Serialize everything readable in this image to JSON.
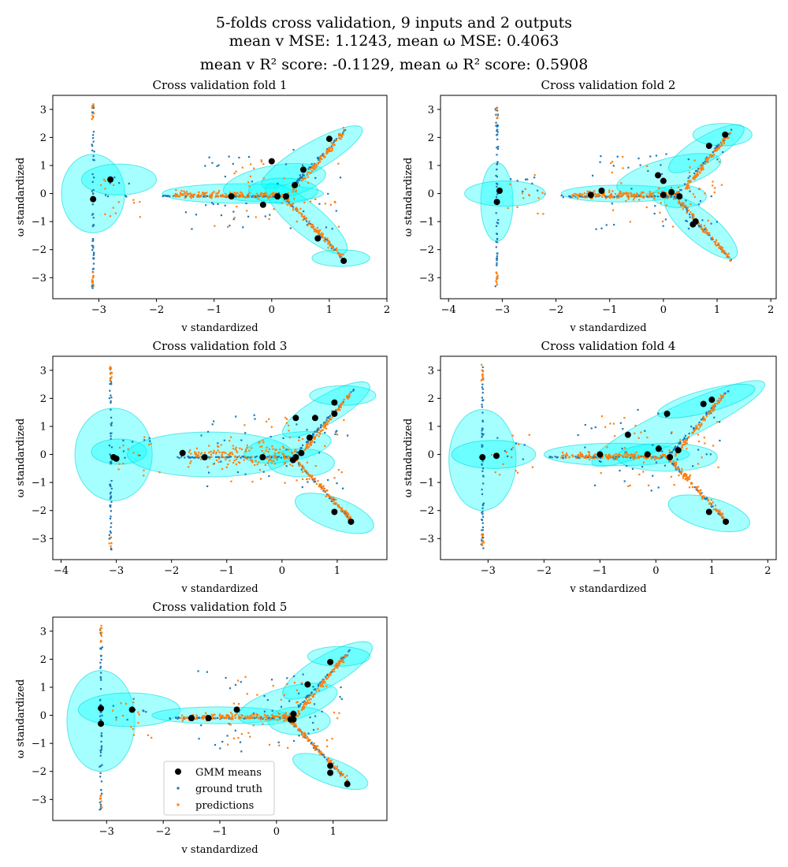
{
  "figure": {
    "title_line1": "5-folds cross validation, 9 inputs and 2 outputs",
    "title_line2": "mean v MSE: 1.1243, mean ω MSE: 0.4063",
    "title_line3": "mean v R² score: -0.1129, mean ω R² score: 0.5908"
  },
  "colors": {
    "gmm_means": "#000000",
    "ground_truth": "#1f77b4",
    "predictions": "#ff7f0e",
    "ellipse_fill": "#00ffff",
    "ellipse_stroke": "#00d8d8"
  },
  "legend": {
    "placement": "lower-center",
    "entries": [
      "GMM means",
      "ground truth",
      "predictions"
    ]
  },
  "chart_data": [
    {
      "type": "scatter",
      "title": "Cross validation fold 1",
      "xlabel": "v standardized",
      "ylabel": "ω standardized",
      "xlim": [
        -3.8,
        2.0
      ],
      "ylim": [
        -3.75,
        3.5
      ],
      "xticks": [
        -3,
        -2,
        -1,
        0,
        1,
        2
      ],
      "yticks": [
        -3,
        -2,
        -1,
        0,
        1,
        2,
        3
      ],
      "gmm_means": [
        [
          -3.1,
          -0.2
        ],
        [
          -2.8,
          0.5
        ],
        [
          -0.7,
          -0.1
        ],
        [
          -0.15,
          -0.4
        ],
        [
          0.0,
          1.15
        ],
        [
          0.1,
          -0.1
        ],
        [
          0.25,
          -0.1
        ],
        [
          0.4,
          0.3
        ],
        [
          0.55,
          0.85
        ],
        [
          0.8,
          -1.6
        ],
        [
          1.0,
          1.95
        ],
        [
          1.25,
          -2.4
        ]
      ],
      "ellipses": [
        {
          "cx": -3.1,
          "cy": 0.0,
          "rx": 0.55,
          "ry": 1.4,
          "angle": 0
        },
        {
          "cx": -2.65,
          "cy": 0.5,
          "rx": 0.65,
          "ry": 0.55,
          "angle": 0
        },
        {
          "cx": -0.5,
          "cy": 0.0,
          "rx": 1.4,
          "ry": 0.35,
          "angle": 0
        },
        {
          "cx": 0.05,
          "cy": 0.4,
          "rx": 0.9,
          "ry": 0.6,
          "angle": 10
        },
        {
          "cx": 0.7,
          "cy": 1.3,
          "rx": 1.0,
          "ry": 0.5,
          "angle": 30
        },
        {
          "cx": 0.6,
          "cy": -0.9,
          "rx": 0.9,
          "ry": 0.55,
          "angle": -40
        },
        {
          "cx": 1.2,
          "cy": -2.3,
          "rx": 0.5,
          "ry": 0.3,
          "angle": 0
        },
        {
          "cx": 0.2,
          "cy": 0.1,
          "rx": 0.6,
          "ry": 0.45,
          "angle": 0
        }
      ]
    },
    {
      "type": "scatter",
      "title": "Cross validation fold 2",
      "xlabel": "v standardized",
      "ylabel": "ω standardized",
      "xlim": [
        -4.15,
        2.1
      ],
      "ylim": [
        -3.75,
        3.5
      ],
      "xticks": [
        -4,
        -3,
        -2,
        -1,
        0,
        1,
        2
      ],
      "yticks": [
        -3,
        -2,
        -1,
        0,
        1,
        2,
        3
      ],
      "gmm_means": [
        [
          -3.1,
          -0.3
        ],
        [
          -3.05,
          0.1
        ],
        [
          -1.35,
          -0.05
        ],
        [
          -1.15,
          0.1
        ],
        [
          -0.1,
          0.65
        ],
        [
          0.0,
          0.45
        ],
        [
          0.0,
          -0.05
        ],
        [
          0.15,
          0.05
        ],
        [
          0.3,
          -0.1
        ],
        [
          0.55,
          -1.1
        ],
        [
          0.6,
          -1.0
        ],
        [
          0.85,
          1.7
        ],
        [
          1.15,
          2.1
        ]
      ],
      "ellipses": [
        {
          "cx": -3.1,
          "cy": -0.3,
          "rx": 0.3,
          "ry": 1.4,
          "angle": 0
        },
        {
          "cx": -2.95,
          "cy": 0.0,
          "rx": 0.75,
          "ry": 0.45,
          "angle": 0
        },
        {
          "cx": -0.8,
          "cy": 0.0,
          "rx": 1.1,
          "ry": 0.3,
          "angle": 0
        },
        {
          "cx": 0.1,
          "cy": 0.7,
          "rx": 1.0,
          "ry": 0.55,
          "angle": 15
        },
        {
          "cx": 0.8,
          "cy": 1.6,
          "rx": 0.8,
          "ry": 0.45,
          "angle": 30
        },
        {
          "cx": 0.7,
          "cy": -1.2,
          "rx": 0.85,
          "ry": 0.55,
          "angle": -40
        },
        {
          "cx": 1.1,
          "cy": 2.1,
          "rx": 0.55,
          "ry": 0.4,
          "angle": 0
        },
        {
          "cx": 0.3,
          "cy": -0.1,
          "rx": 0.5,
          "ry": 0.4,
          "angle": 0
        }
      ]
    },
    {
      "type": "scatter",
      "title": "Cross validation fold 3",
      "xlabel": "v standardized",
      "ylabel": "ω standardized",
      "xlim": [
        -4.15,
        1.9
      ],
      "ylim": [
        -3.75,
        3.5
      ],
      "xticks": [
        -4,
        -3,
        -2,
        -1,
        0,
        1
      ],
      "yticks": [
        -3,
        -2,
        -1,
        0,
        1,
        2,
        3
      ],
      "gmm_means": [
        [
          -3.05,
          -0.1
        ],
        [
          -3.0,
          -0.15
        ],
        [
          -1.8,
          0.05
        ],
        [
          -1.4,
          -0.1
        ],
        [
          -0.35,
          -0.1
        ],
        [
          0.2,
          -0.2
        ],
        [
          0.25,
          -0.1
        ],
        [
          0.25,
          1.3
        ],
        [
          0.35,
          0.05
        ],
        [
          0.5,
          0.6
        ],
        [
          0.6,
          1.3
        ],
        [
          0.95,
          1.45
        ],
        [
          0.95,
          1.85
        ],
        [
          0.95,
          -2.05
        ],
        [
          1.25,
          -2.4
        ]
      ],
      "ellipses": [
        {
          "cx": -3.05,
          "cy": 0.0,
          "rx": 0.7,
          "ry": 1.65,
          "angle": 0
        },
        {
          "cx": -2.95,
          "cy": 0.1,
          "rx": 0.5,
          "ry": 0.45,
          "angle": 0
        },
        {
          "cx": -1.3,
          "cy": 0.0,
          "rx": 1.5,
          "ry": 0.8,
          "angle": 0
        },
        {
          "cx": 0.1,
          "cy": 0.25,
          "rx": 0.8,
          "ry": 0.5,
          "angle": 10
        },
        {
          "cx": 0.8,
          "cy": 1.6,
          "rx": 0.9,
          "ry": 0.5,
          "angle": 30
        },
        {
          "cx": 0.95,
          "cy": -2.1,
          "rx": 0.75,
          "ry": 0.55,
          "angle": -20
        },
        {
          "cx": 1.1,
          "cy": 2.1,
          "rx": 0.6,
          "ry": 0.35,
          "angle": 0
        },
        {
          "cx": 0.35,
          "cy": -0.3,
          "rx": 0.6,
          "ry": 0.5,
          "angle": 0
        }
      ]
    },
    {
      "type": "scatter",
      "title": "Cross validation fold 4",
      "xlabel": "v standardized",
      "ylabel": "ω standardized",
      "xlim": [
        -3.85,
        2.15
      ],
      "ylim": [
        -3.75,
        3.5
      ],
      "xticks": [
        -3,
        -2,
        -1,
        0,
        1,
        2
      ],
      "yticks": [
        -3,
        -2,
        -1,
        0,
        1,
        2,
        3
      ],
      "gmm_means": [
        [
          -3.1,
          -0.1
        ],
        [
          -2.85,
          -0.05
        ],
        [
          -1.0,
          0.0
        ],
        [
          -0.5,
          0.7
        ],
        [
          -0.15,
          0.0
        ],
        [
          0.05,
          0.2
        ],
        [
          0.2,
          1.45
        ],
        [
          0.25,
          -0.1
        ],
        [
          0.4,
          0.15
        ],
        [
          0.85,
          1.8
        ],
        [
          0.95,
          -2.05
        ],
        [
          1.0,
          1.95
        ],
        [
          1.25,
          -2.4
        ]
      ],
      "ellipses": [
        {
          "cx": -3.1,
          "cy": -0.2,
          "rx": 0.6,
          "ry": 1.8,
          "angle": 0
        },
        {
          "cx": -2.9,
          "cy": 0.0,
          "rx": 0.75,
          "ry": 0.5,
          "angle": 0
        },
        {
          "cx": -0.7,
          "cy": 0.0,
          "rx": 1.3,
          "ry": 0.4,
          "angle": 0
        },
        {
          "cx": 0.4,
          "cy": 1.1,
          "rx": 1.7,
          "ry": 0.6,
          "angle": 25
        },
        {
          "cx": 0.9,
          "cy": 1.9,
          "rx": 0.9,
          "ry": 0.4,
          "angle": 15
        },
        {
          "cx": 0.95,
          "cy": -2.1,
          "rx": 0.75,
          "ry": 0.55,
          "angle": -15
        },
        {
          "cx": 0.2,
          "cy": -0.1,
          "rx": 0.9,
          "ry": 0.5,
          "angle": 0
        }
      ]
    },
    {
      "type": "scatter",
      "title": "Cross validation fold 5",
      "xlabel": "v standardized",
      "ylabel": "ω standardized",
      "xlim": [
        -3.95,
        1.95
      ],
      "ylim": [
        -3.75,
        3.5
      ],
      "xticks": [
        -3,
        -2,
        -1,
        0,
        1
      ],
      "yticks": [
        -3,
        -2,
        -1,
        0,
        1,
        2,
        3
      ],
      "gmm_means": [
        [
          -3.1,
          -0.3
        ],
        [
          -3.1,
          0.25
        ],
        [
          -2.55,
          0.2
        ],
        [
          -1.5,
          -0.1
        ],
        [
          -1.2,
          -0.1
        ],
        [
          -0.7,
          0.2
        ],
        [
          0.25,
          -0.15
        ],
        [
          0.3,
          0.05
        ],
        [
          0.3,
          -0.15
        ],
        [
          0.55,
          1.1
        ],
        [
          0.95,
          1.9
        ],
        [
          0.95,
          -1.8
        ],
        [
          0.95,
          -2.05
        ],
        [
          1.25,
          -2.45
        ]
      ],
      "ellipses": [
        {
          "cx": -3.1,
          "cy": -0.2,
          "rx": 0.6,
          "ry": 1.8,
          "angle": 0
        },
        {
          "cx": -2.6,
          "cy": 0.2,
          "rx": 0.9,
          "ry": 0.6,
          "angle": 0
        },
        {
          "cx": -1.0,
          "cy": 0.0,
          "rx": 1.2,
          "ry": 0.3,
          "angle": 0
        },
        {
          "cx": 0.2,
          "cy": 0.4,
          "rx": 0.9,
          "ry": 0.6,
          "angle": 15
        },
        {
          "cx": 0.9,
          "cy": 1.6,
          "rx": 0.9,
          "ry": 0.55,
          "angle": 30
        },
        {
          "cx": 0.95,
          "cy": -2.0,
          "rx": 0.7,
          "ry": 0.45,
          "angle": -20
        },
        {
          "cx": 1.1,
          "cy": 2.1,
          "rx": 0.55,
          "ry": 0.35,
          "angle": 0
        },
        {
          "cx": 0.4,
          "cy": -0.2,
          "rx": 0.55,
          "ry": 0.5,
          "angle": 0
        }
      ],
      "has_legend": true
    }
  ]
}
